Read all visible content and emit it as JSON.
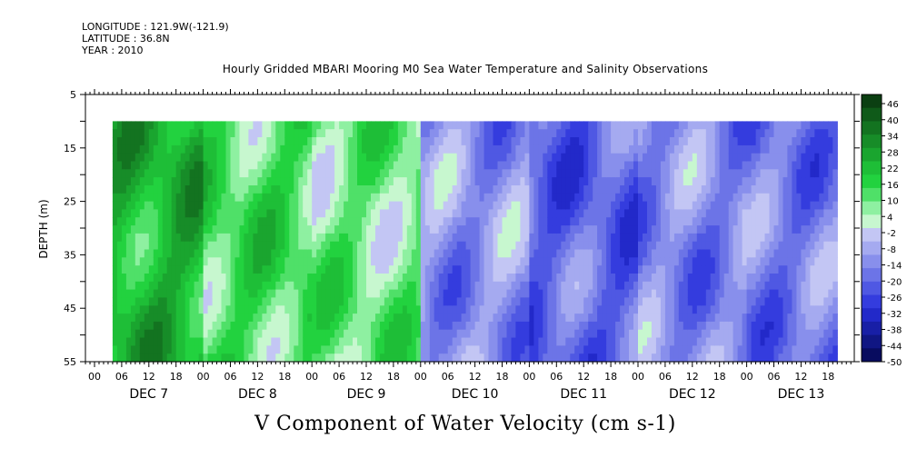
{
  "header": {
    "longitude": "LONGITUDE : 121.9W(-121.9)",
    "latitude": "LATITUDE : 36.8N",
    "year": "YEAR : 2010"
  },
  "chart_data": {
    "type": "heatmap",
    "title": "Hourly Gridded MBARI Mooring M0 Sea Water Temperature and Salinity Observations",
    "xlabel": "V Component of Water Velocity (cm s-1)",
    "ylabel": "DEPTH (m)",
    "ylim": [
      5,
      55
    ],
    "y_reversed": true,
    "y_ticks": [
      5,
      15,
      25,
      35,
      45,
      55
    ],
    "x_hour_ticks": [
      "00",
      "06",
      "12",
      "18",
      "00",
      "06",
      "12",
      "18",
      "00",
      "06",
      "12",
      "18",
      "00",
      "06",
      "12",
      "18",
      "00",
      "06",
      "12",
      "18",
      "00",
      "06",
      "12",
      "18",
      "00",
      "06",
      "12",
      "18"
    ],
    "x_day_labels": [
      "DEC  7",
      "DEC  8",
      "DEC  9",
      "DEC 10",
      "DEC 11",
      "DEC 12",
      "DEC 13"
    ],
    "colorbar_labels": [
      "46",
      "40",
      "34",
      "28",
      "22",
      "16",
      "10",
      "4",
      "-2",
      "-8",
      "-14",
      "-20",
      "-26",
      "-32",
      "-38",
      "-44",
      "-50"
    ],
    "colorbar_colors": [
      "#0b3f12",
      "#0f5a19",
      "#137320",
      "#178c28",
      "#1aa52f",
      "#1ebe37",
      "#22d23f",
      "#4fe068",
      "#8ef0a1",
      "#c7f7cf",
      "#c3c6f4",
      "#a5aaf0",
      "#888fec",
      "#6c74e7",
      "#4f58e3",
      "#343cde",
      "#2229c9",
      "#181fa6",
      "#101683",
      "#080c5f"
    ],
    "data_start": "DEC 7 04",
    "data_hours": 160,
    "depth_top": 10,
    "depth_bottom": 55,
    "v_by_day_mean": [
      22,
      12,
      8,
      -14,
      -22,
      -16,
      -18
    ]
  }
}
